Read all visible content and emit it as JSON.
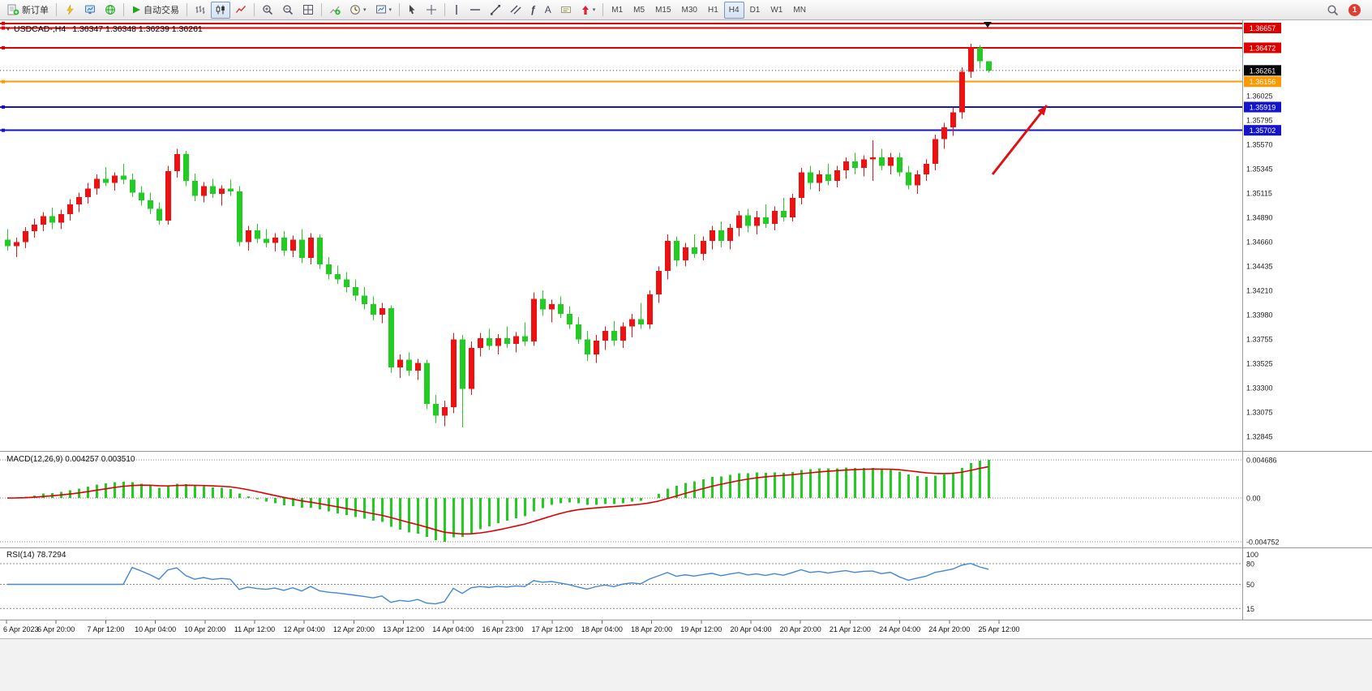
{
  "toolbar": {
    "new_order_label": "新订单",
    "autotrading_label": "自动交易",
    "timeframes": [
      "M1",
      "M5",
      "M15",
      "M30",
      "H1",
      "H4",
      "D1",
      "W1",
      "MN"
    ],
    "active_timeframe": "H4",
    "notification_count": "1",
    "caret_glyph": "▾",
    "fibonacci_glyph": "ƒ",
    "text_tool_glyph": "A"
  },
  "chart": {
    "marker_icon": "▼",
    "title": "USDCAD-,H4",
    "ohlc": "1.36347 1.36348 1.36239 1.36261"
  },
  "chart_data": {
    "type": "candlestick",
    "symbol": "USDCAD-",
    "timeframe": "H4",
    "colors": {
      "bull": "#ee1111",
      "bear": "#22cc22",
      "level_red": "#dd0000",
      "level_orange": "#ff9900",
      "level_blue": "#1414cc",
      "macd_histogram": "#22cc22",
      "macd_signal": "#dd0000",
      "rsi_line": "#4287d6",
      "annotation_arrow": "#e01010"
    },
    "candles_ohlc": [
      [
        1.3468,
        1.3478,
        1.3458,
        1.3462
      ],
      [
        1.3462,
        1.347,
        1.3452,
        1.3466
      ],
      [
        1.3466,
        1.348,
        1.346,
        1.3476
      ],
      [
        1.3476,
        1.3488,
        1.347,
        1.3482
      ],
      [
        1.3482,
        1.3494,
        1.3476,
        1.349
      ],
      [
        1.349,
        1.3498,
        1.3478,
        1.3484
      ],
      [
        1.3484,
        1.3496,
        1.3478,
        1.3492
      ],
      [
        1.3492,
        1.3506,
        1.3486,
        1.3501
      ],
      [
        1.3501,
        1.3512,
        1.3494,
        1.3508
      ],
      [
        1.3508,
        1.3521,
        1.3502,
        1.3516
      ],
      [
        1.3516,
        1.3529,
        1.351,
        1.3525
      ],
      [
        1.3525,
        1.3536,
        1.3518,
        1.3521
      ],
      [
        1.3521,
        1.3531,
        1.3514,
        1.3528
      ],
      [
        1.3528,
        1.3539,
        1.352,
        1.3524
      ],
      [
        1.3524,
        1.353,
        1.3508,
        1.3512
      ],
      [
        1.3512,
        1.3518,
        1.35,
        1.3505
      ],
      [
        1.3505,
        1.3512,
        1.3492,
        1.3497
      ],
      [
        1.3497,
        1.3503,
        1.3482,
        1.3486
      ],
      [
        1.3486,
        1.3537,
        1.3482,
        1.3532
      ],
      [
        1.3532,
        1.3553,
        1.3526,
        1.3548
      ],
      [
        1.3548,
        1.3551,
        1.3518,
        1.3523
      ],
      [
        1.3523,
        1.353,
        1.3504,
        1.3509
      ],
      [
        1.3509,
        1.3522,
        1.3503,
        1.3518
      ],
      [
        1.3518,
        1.3525,
        1.3507,
        1.3511
      ],
      [
        1.3511,
        1.3519,
        1.35,
        1.3516
      ],
      [
        1.3516,
        1.3524,
        1.3509,
        1.3513
      ],
      [
        1.3513,
        1.3518,
        1.3462,
        1.3466
      ],
      [
        1.3466,
        1.3481,
        1.3458,
        1.3477
      ],
      [
        1.3477,
        1.3483,
        1.3465,
        1.3469
      ],
      [
        1.3469,
        1.3478,
        1.3461,
        1.3465
      ],
      [
        1.3465,
        1.3474,
        1.3457,
        1.347
      ],
      [
        1.347,
        1.3476,
        1.3453,
        1.3458
      ],
      [
        1.3458,
        1.3472,
        1.3452,
        1.3468
      ],
      [
        1.3468,
        1.3478,
        1.3446,
        1.3451
      ],
      [
        1.3451,
        1.3474,
        1.3445,
        1.347
      ],
      [
        1.347,
        1.3473,
        1.3441,
        1.3445
      ],
      [
        1.3445,
        1.3452,
        1.3431,
        1.3436
      ],
      [
        1.3436,
        1.3444,
        1.3427,
        1.3431
      ],
      [
        1.3431,
        1.3438,
        1.3419,
        1.3424
      ],
      [
        1.3424,
        1.3431,
        1.3411,
        1.3416
      ],
      [
        1.3416,
        1.3424,
        1.3403,
        1.3408
      ],
      [
        1.3408,
        1.3415,
        1.3393,
        1.3398
      ],
      [
        1.3398,
        1.3409,
        1.339,
        1.3404
      ],
      [
        1.3404,
        1.3407,
        1.3344,
        1.3349
      ],
      [
        1.3349,
        1.3361,
        1.3339,
        1.3356
      ],
      [
        1.3356,
        1.3363,
        1.3341,
        1.3346
      ],
      [
        1.3346,
        1.3357,
        1.3337,
        1.3353
      ],
      [
        1.3353,
        1.3356,
        1.331,
        1.3315
      ],
      [
        1.3315,
        1.3323,
        1.3297,
        1.3304
      ],
      [
        1.3304,
        1.3318,
        1.3294,
        1.3312
      ],
      [
        1.3312,
        1.3381,
        1.3306,
        1.3375
      ],
      [
        1.3375,
        1.3379,
        1.3293,
        1.3329
      ],
      [
        1.3329,
        1.3373,
        1.3323,
        1.3367
      ],
      [
        1.3367,
        1.3381,
        1.3359,
        1.3376
      ],
      [
        1.3376,
        1.3385,
        1.3365,
        1.3369
      ],
      [
        1.3369,
        1.338,
        1.3361,
        1.3376
      ],
      [
        1.3376,
        1.3387,
        1.3367,
        1.3371
      ],
      [
        1.3371,
        1.3382,
        1.3363,
        1.3378
      ],
      [
        1.3378,
        1.3391,
        1.3369,
        1.3373
      ],
      [
        1.3373,
        1.3419,
        1.3369,
        1.3413
      ],
      [
        1.3413,
        1.3421,
        1.3397,
        1.3403
      ],
      [
        1.3403,
        1.3412,
        1.3391,
        1.3408
      ],
      [
        1.3408,
        1.3415,
        1.3395,
        1.3399
      ],
      [
        1.3399,
        1.3406,
        1.3385,
        1.3389
      ],
      [
        1.3389,
        1.3396,
        1.3371,
        1.3375
      ],
      [
        1.3375,
        1.3383,
        1.3355,
        1.3361
      ],
      [
        1.3361,
        1.3379,
        1.3353,
        1.3374
      ],
      [
        1.3374,
        1.3387,
        1.3365,
        1.3383
      ],
      [
        1.3383,
        1.3392,
        1.3369,
        1.3374
      ],
      [
        1.3374,
        1.3391,
        1.3367,
        1.3387
      ],
      [
        1.3387,
        1.3399,
        1.3377,
        1.3394
      ],
      [
        1.3394,
        1.3409,
        1.3385,
        1.3389
      ],
      [
        1.3389,
        1.3421,
        1.3385,
        1.3417
      ],
      [
        1.3417,
        1.3443,
        1.3409,
        1.3439
      ],
      [
        1.3439,
        1.3473,
        1.3431,
        1.3467
      ],
      [
        1.3467,
        1.3471,
        1.3443,
        1.3449
      ],
      [
        1.3449,
        1.3465,
        1.3443,
        1.3461
      ],
      [
        1.3461,
        1.3473,
        1.3451,
        1.3455
      ],
      [
        1.3455,
        1.3471,
        1.3449,
        1.3467
      ],
      [
        1.3467,
        1.3481,
        1.3459,
        1.3477
      ],
      [
        1.3477,
        1.3485,
        1.3461,
        1.3467
      ],
      [
        1.3467,
        1.3483,
        1.3459,
        1.3479
      ],
      [
        1.3479,
        1.3495,
        1.3471,
        1.3491
      ],
      [
        1.3491,
        1.3497,
        1.3475,
        1.3481
      ],
      [
        1.3481,
        1.3495,
        1.3473,
        1.3489
      ],
      [
        1.3489,
        1.3501,
        1.3479,
        1.3483
      ],
      [
        1.3483,
        1.3499,
        1.3477,
        1.3495
      ],
      [
        1.3495,
        1.3507,
        1.3485,
        1.3489
      ],
      [
        1.3489,
        1.3511,
        1.3485,
        1.3507
      ],
      [
        1.3507,
        1.3535,
        1.3501,
        1.3531
      ],
      [
        1.3531,
        1.3537,
        1.3515,
        1.3521
      ],
      [
        1.3521,
        1.3533,
        1.3513,
        1.3529
      ],
      [
        1.3529,
        1.3539,
        1.3519,
        1.3523
      ],
      [
        1.3523,
        1.3537,
        1.3517,
        1.3533
      ],
      [
        1.3533,
        1.3545,
        1.3525,
        1.3541
      ],
      [
        1.3541,
        1.3549,
        1.3529,
        1.3535
      ],
      [
        1.3535,
        1.3547,
        1.3527,
        1.3543
      ],
      [
        1.3543,
        1.3561,
        1.3523,
        1.3545
      ],
      [
        1.3545,
        1.3553,
        1.3533,
        1.3537
      ],
      [
        1.3537,
        1.3549,
        1.3529,
        1.3545
      ],
      [
        1.3545,
        1.3549,
        1.3527,
        1.3531
      ],
      [
        1.3531,
        1.3537,
        1.3515,
        1.3519
      ],
      [
        1.3519,
        1.3533,
        1.3511,
        1.3529
      ],
      [
        1.3529,
        1.3543,
        1.3523,
        1.3539
      ],
      [
        1.3539,
        1.3566,
        1.3533,
        1.3562
      ],
      [
        1.3562,
        1.3577,
        1.3553,
        1.3573
      ],
      [
        1.3573,
        1.3591,
        1.3565,
        1.3587
      ],
      [
        1.3587,
        1.3629,
        1.3581,
        1.3625
      ],
      [
        1.3625,
        1.3651,
        1.3619,
        1.3647
      ],
      [
        1.3647,
        1.365,
        1.3628,
        1.36347
      ],
      [
        1.36347,
        1.36348,
        1.36239,
        1.36261
      ]
    ],
    "price_levels": [
      {
        "price": 1.367,
        "color": "#dd0000",
        "label": ""
      },
      {
        "price": 1.36657,
        "color": "#dd0000",
        "label": "1.36657"
      },
      {
        "price": 1.36472,
        "color": "#dd0000",
        "label": "1.36472"
      },
      {
        "price": 1.36156,
        "color": "#ff9900",
        "label": "1.36156"
      },
      {
        "price": 1.35919,
        "color": "#1414cc",
        "label": "1.35919"
      },
      {
        "price": 1.35702,
        "color": "#1414cc",
        "label": "1.35702"
      }
    ],
    "current_price": {
      "value": 1.36261,
      "label": "1.36261"
    },
    "price_axis_labels": [
      "1.36025",
      "1.35795",
      "1.35570",
      "1.35345",
      "1.35115",
      "1.34890",
      "1.34660",
      "1.34435",
      "1.34210",
      "1.33980",
      "1.33755",
      "1.33525",
      "1.33300",
      "1.33075",
      "1.32845"
    ],
    "time_axis_labels": [
      "6 Apr 2023",
      "6 Apr 20:00",
      "7 Apr 12:00",
      "10 Apr 04:00",
      "10 Apr 20:00",
      "11 Apr 12:00",
      "12 Apr 04:00",
      "12 Apr 20:00",
      "13 Apr 12:00",
      "14 Apr 04:00",
      "16 Apr 23:00",
      "17 Apr 12:00",
      "18 Apr 04:00",
      "18 Apr 20:00",
      "19 Apr 12:00",
      "20 Apr 04:00",
      "20 Apr 20:00",
      "21 Apr 12:00",
      "24 Apr 04:00",
      "24 Apr 20:00",
      "25 Apr 12:00"
    ],
    "indicators": {
      "macd": {
        "label": "MACD(12,26,9) 0.004257 0.003510",
        "params": [
          12,
          26,
          9
        ],
        "values": [
          0.004257,
          0.00351
        ],
        "axis_labels": {
          "max": "0.004686",
          "zero": "0.00",
          "min": "-0.004752"
        }
      },
      "rsi": {
        "label": "RSI(14) 78.7294",
        "period": 14,
        "value": 78.7294,
        "axis_labels": [
          "100",
          "80",
          "50",
          "15"
        ],
        "levels": [
          80,
          50,
          15
        ]
      }
    },
    "annotations": [
      {
        "type": "arrow",
        "color": "#e01010",
        "from_xy": [
          1224,
          190
        ],
        "to_xy": [
          1291,
          105
        ]
      }
    ]
  }
}
